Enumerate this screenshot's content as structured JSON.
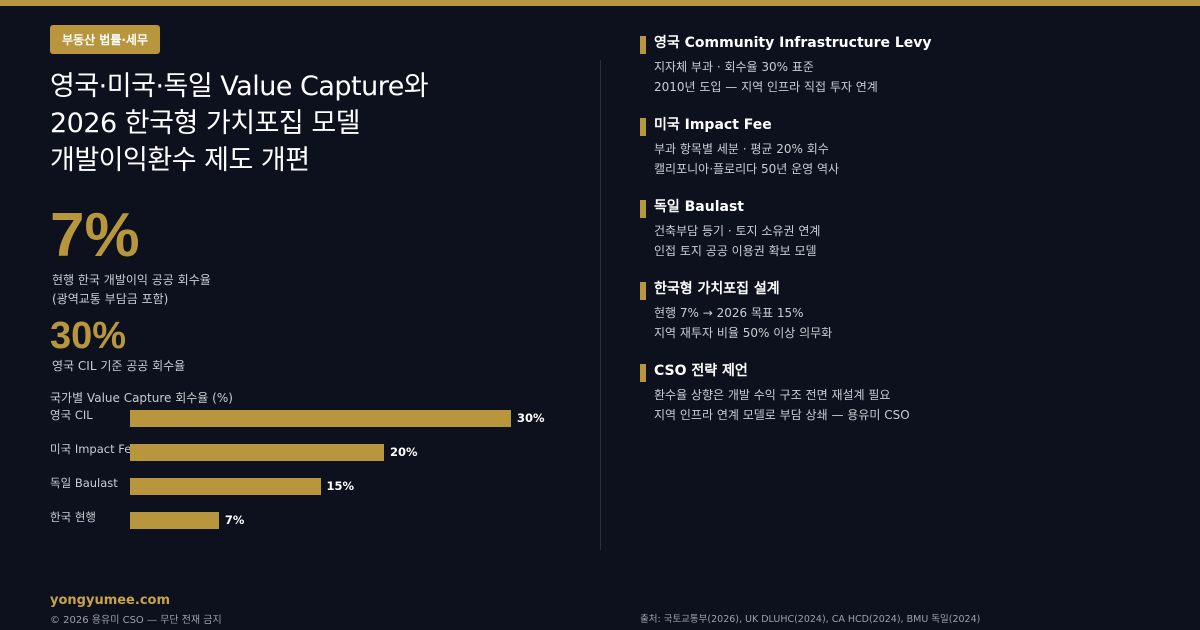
{
  "colors": {
    "accent": "#b8963e",
    "background": "#0c111d"
  },
  "badge": "부동산 법률·세무",
  "title": [
    "영국·미국·독일 Value Capture와",
    "2026 한국형 가치포집 모델",
    "개발이익환수 제도 개편"
  ],
  "stat1": {
    "value": "7%",
    "desc": [
      "현행 한국 개발이익 공공 회수율",
      "(광역교통 부담금 포함)"
    ]
  },
  "stat2": {
    "value": "30%",
    "desc": "영국 CIL 기준 공공 회수율"
  },
  "chart_data": {
    "type": "bar",
    "orientation": "horizontal",
    "title": "국가별 Value Capture 회수율 (%)",
    "categories": [
      "영국 CIL",
      "미국 Impact Fee",
      "독일 Baulast",
      "한국 현행"
    ],
    "values": [
      30,
      20,
      15,
      7
    ],
    "labels": [
      "30%",
      "20%",
      "15%",
      "7%"
    ],
    "xlim": [
      0,
      30
    ]
  },
  "sections": [
    {
      "heading": "영국 Community Infrastructure Levy",
      "lines": [
        "지자체 부과 · 회수율 30% 표준",
        "2010년 도입 — 지역 인프라 직접 투자 연계"
      ]
    },
    {
      "heading": "미국 Impact Fee",
      "lines": [
        "부과 항목별 세분 · 평균 20% 회수",
        "캘리포니아·플로리다 50년 운영 역사"
      ]
    },
    {
      "heading": "독일 Baulast",
      "lines": [
        "건축부담 등기 · 토지 소유권 연계",
        "인접 토지 공공 이용권 확보 모델"
      ]
    },
    {
      "heading": "한국형 가치포집 설계",
      "lines": [
        "현행 7% → 2026 목표 15%",
        "지역 재투자 비율 50% 이상 의무화"
      ]
    },
    {
      "heading": "CSO 전략 제언",
      "lines": [
        "환수율 상향은 개발 수익 구조 전면 재설계 필요",
        "지역 인프라 연계 모델로 부담 상쇄 — 용유미 CSO"
      ]
    }
  ],
  "footer": {
    "site": "yongyumee.com",
    "copyright": "© 2026 용유미 CSO — 무단 전재 금지",
    "source": "출처: 국토교통부(2026), UK DLUHC(2024), CA HCD(2024), BMU 독일(2024)"
  }
}
